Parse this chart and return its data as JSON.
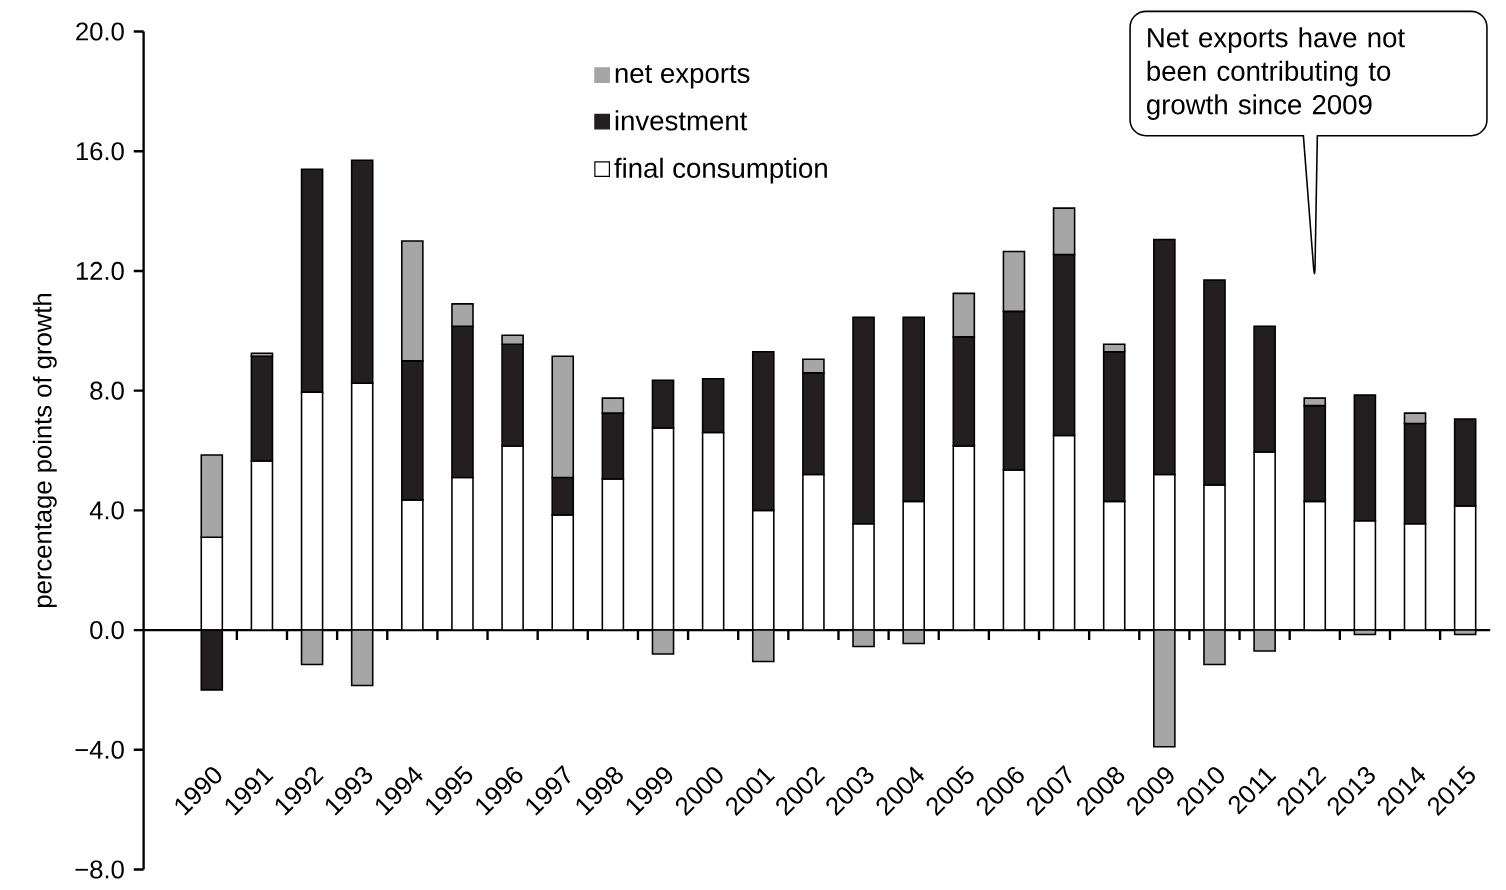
{
  "chart_data": {
    "type": "bar",
    "stacked": true,
    "ylabel": "percentage points of growth",
    "categories": [
      "1990",
      "1991",
      "1992",
      "1993",
      "1994",
      "1995",
      "1996",
      "1997",
      "1998",
      "1999",
      "2000",
      "2001",
      "2002",
      "2003",
      "2004",
      "2005",
      "2006",
      "2007",
      "2008",
      "2009",
      "2010",
      "2011",
      "2012",
      "2013",
      "2014",
      "2015"
    ],
    "series": [
      {
        "name": "final consumption",
        "color": "#ffffff",
        "values": [
          3.1,
          5.65,
          7.95,
          8.25,
          4.35,
          5.1,
          6.15,
          3.85,
          5.05,
          6.75,
          6.6,
          4.0,
          5.2,
          3.55,
          4.3,
          6.15,
          5.35,
          6.5,
          4.3,
          5.2,
          4.85,
          5.95,
          4.3,
          3.65,
          3.55,
          4.15
        ]
      },
      {
        "name": "investment",
        "color": "#231f20",
        "values": [
          -2.0,
          3.5,
          7.45,
          7.45,
          4.65,
          5.05,
          3.4,
          1.25,
          2.2,
          1.6,
          1.8,
          5.3,
          3.4,
          6.9,
          6.15,
          3.65,
          5.3,
          6.05,
          5.0,
          7.85,
          6.85,
          4.2,
          3.2,
          4.2,
          3.35,
          2.9
        ]
      },
      {
        "name": "net exports",
        "color": "#a6a6a6",
        "values": [
          2.75,
          0.1,
          -1.15,
          -1.85,
          4.0,
          0.75,
          0.3,
          4.05,
          0.5,
          -0.8,
          null,
          -1.05,
          0.45,
          -0.55,
          -0.45,
          1.45,
          2.0,
          1.55,
          0.25,
          -3.9,
          -1.15,
          -0.7,
          0.25,
          -0.15,
          0.35,
          -0.15
        ]
      }
    ],
    "ylim": [
      -8,
      20
    ],
    "yticks": [
      {
        "value": -8,
        "label": "−8.0"
      },
      {
        "value": -4,
        "label": "−4.0"
      },
      {
        "value": 0,
        "label": "0.0"
      },
      {
        "value": 4,
        "label": "4.0"
      },
      {
        "value": 8,
        "label": "8.0"
      },
      {
        "value": 12,
        "label": "12.0"
      },
      {
        "value": 16,
        "label": "16.0"
      },
      {
        "value": 20,
        "label": "20.0"
      }
    ],
    "legend": "top",
    "annotations": [
      "Net exports have not been contributing to growth since 2009"
    ]
  }
}
